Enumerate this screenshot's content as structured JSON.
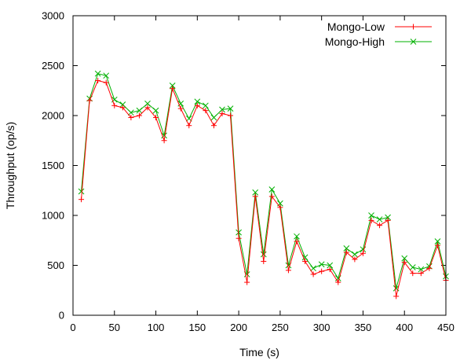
{
  "chart_data": {
    "type": "line",
    "title": "",
    "xlabel": "Time (s)",
    "ylabel": "Throughput (op/s)",
    "xlim": [
      0,
      450
    ],
    "ylim": [
      0,
      3000
    ],
    "xticks": [
      0,
      50,
      100,
      150,
      200,
      250,
      300,
      350,
      400,
      450
    ],
    "yticks": [
      0,
      500,
      1000,
      1500,
      2000,
      2500,
      3000
    ],
    "grid": false,
    "legend_position": "top-right",
    "x": [
      10,
      20,
      30,
      40,
      50,
      60,
      70,
      80,
      90,
      100,
      110,
      120,
      130,
      140,
      150,
      160,
      170,
      180,
      190,
      200,
      210,
      220,
      230,
      240,
      250,
      260,
      270,
      280,
      290,
      300,
      310,
      320,
      330,
      340,
      350,
      360,
      370,
      380,
      390,
      400,
      410,
      420,
      430,
      440,
      450
    ],
    "series": [
      {
        "name": "Mongo-Low",
        "color": "#ff0000",
        "marker": "plus",
        "values": [
          1160,
          2150,
          2350,
          2330,
          2100,
          2080,
          1980,
          2000,
          2080,
          1980,
          1750,
          2270,
          2070,
          1900,
          2100,
          2050,
          1900,
          2020,
          2000,
          770,
          330,
          1190,
          540,
          1190,
          1080,
          450,
          740,
          540,
          410,
          440,
          460,
          330,
          630,
          560,
          620,
          950,
          900,
          950,
          190,
          530,
          420,
          420,
          470,
          700,
          350
        ]
      },
      {
        "name": "Mongo-High",
        "color": "#00b000",
        "marker": "x",
        "values": [
          1240,
          2170,
          2420,
          2400,
          2160,
          2110,
          2030,
          2050,
          2120,
          2050,
          1800,
          2300,
          2120,
          1970,
          2140,
          2100,
          1980,
          2060,
          2070,
          830,
          410,
          1230,
          610,
          1260,
          1120,
          500,
          790,
          580,
          470,
          510,
          500,
          370,
          670,
          610,
          660,
          1000,
          960,
          980,
          270,
          570,
          480,
          460,
          490,
          740,
          390
        ]
      }
    ]
  }
}
